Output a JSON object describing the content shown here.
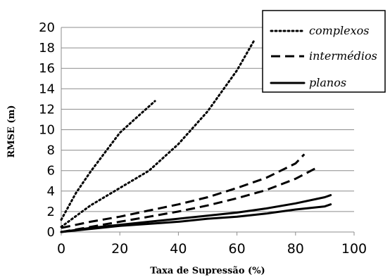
{
  "chart_data": {
    "type": "line",
    "xlabel": "Taxa de Supressão (%)",
    "ylabel": "RMSE (m)",
    "xlim": [
      0,
      100
    ],
    "ylim": [
      0,
      20
    ],
    "xticks": [
      0,
      20,
      40,
      60,
      80,
      100
    ],
    "yticks": [
      0,
      2,
      4,
      6,
      8,
      10,
      12,
      14,
      16,
      18,
      20
    ],
    "grid": "horizontal",
    "legend_position": "top-right",
    "legend": [
      {
        "label": "complexos",
        "style": "dotted"
      },
      {
        "label": "intermédios",
        "style": "dashed"
      },
      {
        "label": "planos",
        "style": "solid"
      }
    ],
    "series": [
      {
        "legend": "complexos",
        "style": "dotted",
        "x": [
          0,
          5,
          10,
          15,
          20,
          25,
          32
        ],
        "y": [
          1.2,
          3.8,
          5.9,
          7.8,
          9.7,
          11.0,
          12.8
        ]
      },
      {
        "legend": "complexos",
        "style": "dotted",
        "x": [
          0,
          10,
          20,
          30,
          40,
          50,
          60,
          66
        ],
        "y": [
          0.5,
          2.6,
          4.3,
          6.0,
          8.6,
          11.8,
          15.8,
          18.8
        ]
      },
      {
        "legend": "intermédios",
        "style": "dashed",
        "x": [
          0,
          10,
          20,
          30,
          40,
          50,
          60,
          70,
          80,
          83
        ],
        "y": [
          0.4,
          1.0,
          1.5,
          2.1,
          2.7,
          3.4,
          4.3,
          5.3,
          6.7,
          7.6
        ]
      },
      {
        "legend": "intermédios",
        "style": "dashed",
        "x": [
          0,
          10,
          20,
          30,
          40,
          50,
          60,
          70,
          80,
          88
        ],
        "y": [
          0.0,
          0.5,
          1.0,
          1.5,
          2.0,
          2.6,
          3.3,
          4.1,
          5.2,
          6.4
        ]
      },
      {
        "legend": "planos",
        "style": "solid",
        "x": [
          0,
          10,
          20,
          30,
          40,
          50,
          60,
          70,
          80,
          90,
          92
        ],
        "y": [
          0.0,
          0.4,
          0.7,
          1.0,
          1.3,
          1.6,
          1.9,
          2.3,
          2.8,
          3.4,
          3.6
        ]
      },
      {
        "legend": "planos",
        "style": "solid",
        "x": [
          0,
          10,
          20,
          30,
          40,
          50,
          60,
          70,
          80,
          90,
          92
        ],
        "y": [
          0.0,
          0.3,
          0.6,
          0.8,
          1.0,
          1.3,
          1.5,
          1.8,
          2.2,
          2.5,
          2.7
        ]
      }
    ]
  }
}
